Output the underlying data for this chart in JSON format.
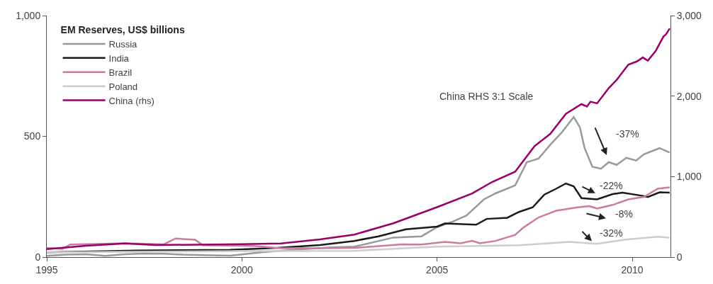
{
  "chart_data": {
    "type": "line",
    "legend_title": "EM Reserves, US$ billions",
    "legend": "top left",
    "marker": "none",
    "line_style": "solid",
    "xlim": [
      1995,
      2010.98
    ],
    "xticks": [
      1995,
      2000,
      2005,
      2010
    ],
    "ylim": [
      0,
      1000
    ],
    "yticks": [
      0,
      500,
      {
        "value": 1000,
        "label": "1,000"
      }
    ],
    "y2lim": [
      0,
      3000
    ],
    "y2ticks": [
      0,
      {
        "value": 1000,
        "label": "1,000"
      },
      {
        "value": 2000,
        "label": "2,000"
      },
      {
        "value": 3000,
        "label": "3,000"
      }
    ],
    "series": [
      {
        "name": "Russia",
        "color": "#999999",
        "x": [
          1995.0,
          1995.5,
          1996.0,
          1996.5,
          1997.0,
          1997.5,
          1998.0,
          1998.5,
          1999.0,
          1999.7,
          2000.5,
          2001.5,
          2002.3,
          2002.88,
          2003.88,
          2004.6,
          2005.0,
          2005.4,
          2005.75,
          2006.2,
          2006.5,
          2007.0,
          2007.3,
          2007.6,
          2007.9,
          2008.2,
          2008.5,
          2008.66,
          2008.78,
          2008.98,
          2009.2,
          2009.4,
          2009.6,
          2009.85,
          2010.1,
          2010.3,
          2010.7,
          2010.96
        ],
        "values": [
          5,
          10,
          12,
          5,
          12,
          15,
          14,
          10,
          8,
          6,
          20,
          32,
          40,
          43,
          81,
          86,
          124,
          147,
          172,
          239,
          264,
          297,
          393,
          408,
          465,
          517,
          580,
          537,
          451,
          374,
          366,
          393,
          382,
          411,
          400,
          426,
          451,
          433
        ]
      },
      {
        "name": "India",
        "color": "#1a1a1a",
        "x": [
          1995.0,
          1997.3,
          1999.7,
          2000.9,
          2002.0,
          2002.88,
          2003.5,
          2004.2,
          2005.0,
          2005.2,
          2006.0,
          2006.27,
          2006.8,
          2007.1,
          2007.45,
          2007.75,
          2008.05,
          2008.3,
          2008.5,
          2008.7,
          2009.1,
          2009.5,
          2009.75,
          2010.25,
          2010.4,
          2010.7,
          2010.96
        ],
        "values": [
          20,
          27,
          30,
          38,
          50,
          67,
          86,
          115,
          126,
          139,
          134,
          158,
          163,
          187,
          206,
          259,
          283,
          305,
          293,
          244,
          239,
          261,
          267,
          254,
          249,
          268,
          267
        ]
      },
      {
        "name": "Brazil",
        "color": "#cc7aa3",
        "x": [
          1995.0,
          1995.4,
          1995.6,
          1997.0,
          1998.0,
          1998.3,
          1998.8,
          1999.0,
          2000.3,
          2001.0,
          2002.0,
          2002.88,
          2004.1,
          2004.6,
          2005.2,
          2005.6,
          2005.9,
          2006.1,
          2006.5,
          2007.0,
          2007.2,
          2007.6,
          2008.05,
          2008.6,
          2008.9,
          2009.1,
          2009.5,
          2009.9,
          2010.3,
          2010.65,
          2010.96
        ],
        "values": [
          38,
          34,
          52,
          57,
          53,
          77,
          72,
          49,
          46,
          37,
          37,
          38,
          53,
          52,
          63,
          57,
          67,
          57,
          67,
          92,
          121,
          164,
          192,
          206,
          211,
          201,
          216,
          239,
          249,
          283,
          289
        ]
      },
      {
        "name": "Poland",
        "color": "#cccccc",
        "x": [
          1995.0,
          2000.0,
          2002.88,
          2005.0,
          2007.1,
          2008.4,
          2008.9,
          2009.1,
          2009.8,
          2010.65,
          2010.96
        ],
        "values": [
          20,
          25,
          26,
          43,
          49,
          63,
          57,
          55,
          72,
          84,
          81
        ]
      },
      {
        "name": "China (rhs)",
        "color": "#990066",
        "axis": "y2",
        "x": [
          1995.0,
          1996.0,
          1997.0,
          1997.8,
          2000.0,
          2001.0,
          2002.0,
          2002.88,
          2003.88,
          2005.0,
          2005.9,
          2006.4,
          2007.0,
          2007.5,
          2007.9,
          2008.3,
          2008.7,
          2008.84,
          2008.93,
          2009.1,
          2009.4,
          2009.6,
          2009.9,
          2010.12,
          2010.27,
          2010.4,
          2010.6,
          2010.8,
          2010.87,
          2010.96
        ],
        "values": [
          100,
          140,
          170,
          150,
          160,
          170,
          220,
          280,
          420,
          620,
          790,
          930,
          1060,
          1380,
          1530,
          1780,
          1900,
          1870,
          1930,
          1910,
          2100,
          2200,
          2390,
          2430,
          2480,
          2440,
          2560,
          2740,
          2770,
          2840
        ]
      }
    ],
    "annotations": [
      "China RHS 3:1 Scale",
      "-37%",
      "-22%",
      "-8%",
      "-32%"
    ]
  }
}
